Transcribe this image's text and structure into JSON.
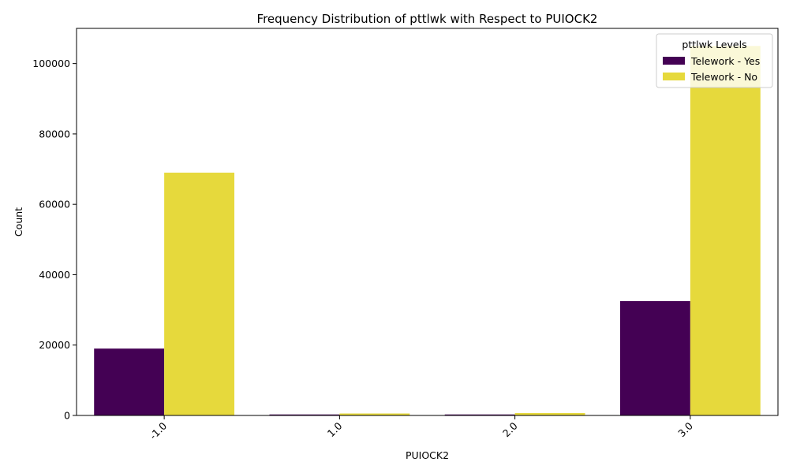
{
  "chart_data": {
    "type": "bar",
    "title": "Frequency Distribution of pttlwk with Respect to PUIOCK2",
    "xlabel": "PUIOCK2",
    "ylabel": "Count",
    "categories": [
      "-1.0",
      "1.0",
      "2.0",
      "3.0"
    ],
    "series": [
      {
        "name": "Telework - Yes",
        "color": "#440154",
        "values": [
          19000,
          280,
          280,
          32500
        ]
      },
      {
        "name": "Telework - No",
        "color": "#e6d93c",
        "values": [
          69000,
          560,
          680,
          105000
        ]
      }
    ],
    "ylim": [
      0,
      110000
    ],
    "yticks": [
      0,
      20000,
      40000,
      60000,
      80000,
      100000
    ],
    "legend": {
      "title": "pttlwk Levels",
      "placement": "top-right"
    },
    "grid": false
  }
}
